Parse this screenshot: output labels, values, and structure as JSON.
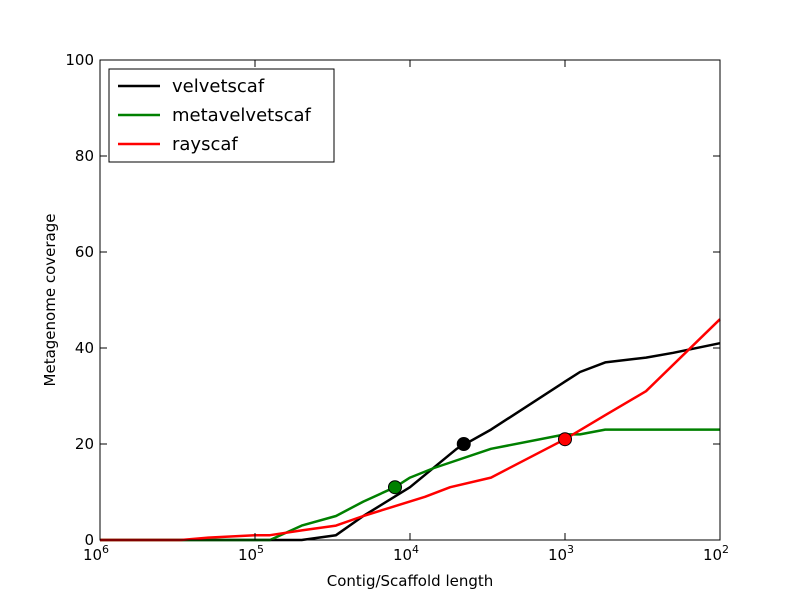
{
  "chart_data": {
    "type": "line",
    "xlabel": "Contig/Scaffold length",
    "ylabel": "Metagenome coverage",
    "xscale": "log",
    "x_reversed": true,
    "xlim": [
      1000000,
      100
    ],
    "ylim": [
      0,
      100
    ],
    "grid": false,
    "legend_position": "top-left",
    "x_ticks": [
      1000000,
      100000,
      10000,
      1000,
      100
    ],
    "x_tick_labels": [
      {
        "base": "10",
        "exp": "6"
      },
      {
        "base": "10",
        "exp": "5"
      },
      {
        "base": "10",
        "exp": "4"
      },
      {
        "base": "10",
        "exp": "3"
      },
      {
        "base": "10",
        "exp": "2"
      }
    ],
    "y_ticks": [
      0,
      20,
      40,
      60,
      80,
      100
    ],
    "y_tick_labels": [
      "0",
      "20",
      "40",
      "60",
      "80",
      "100"
    ],
    "series": [
      {
        "name": "velvetscaf",
        "color": "#000000",
        "points": [
          [
            1000000,
            0
          ],
          [
            100000,
            0
          ],
          [
            50000,
            0
          ],
          [
            30000,
            1
          ],
          [
            20000,
            5
          ],
          [
            10000,
            11
          ],
          [
            5000,
            19
          ],
          [
            3000,
            23
          ],
          [
            1000,
            33
          ],
          [
            800,
            35
          ],
          [
            550,
            37
          ],
          [
            300,
            38
          ],
          [
            200,
            39
          ],
          [
            100,
            41
          ]
        ],
        "marker": [
          4500,
          20
        ]
      },
      {
        "name": "metavelvetscaf",
        "color": "#008000",
        "points": [
          [
            1000000,
            0
          ],
          [
            100000,
            0
          ],
          [
            80000,
            0
          ],
          [
            50000,
            3
          ],
          [
            30000,
            5
          ],
          [
            20000,
            8
          ],
          [
            12500,
            11
          ],
          [
            10000,
            13
          ],
          [
            7000,
            15
          ],
          [
            3000,
            19
          ],
          [
            1000,
            22
          ],
          [
            800,
            22
          ],
          [
            550,
            23
          ],
          [
            300,
            23
          ],
          [
            100,
            23
          ]
        ],
        "marker": [
          12500,
          11
        ]
      },
      {
        "name": "rayscaf",
        "color": "#ff0000",
        "points": [
          [
            1000000,
            0
          ],
          [
            300000,
            0
          ],
          [
            200000,
            0.5
          ],
          [
            100000,
            1
          ],
          [
            80000,
            1
          ],
          [
            50000,
            2
          ],
          [
            30000,
            3
          ],
          [
            20000,
            5
          ],
          [
            8000,
            9
          ],
          [
            5500,
            11
          ],
          [
            3000,
            13
          ],
          [
            1000,
            21
          ],
          [
            550,
            26
          ],
          [
            300,
            31
          ],
          [
            100,
            46
          ]
        ],
        "marker": [
          1000,
          21
        ]
      }
    ]
  }
}
